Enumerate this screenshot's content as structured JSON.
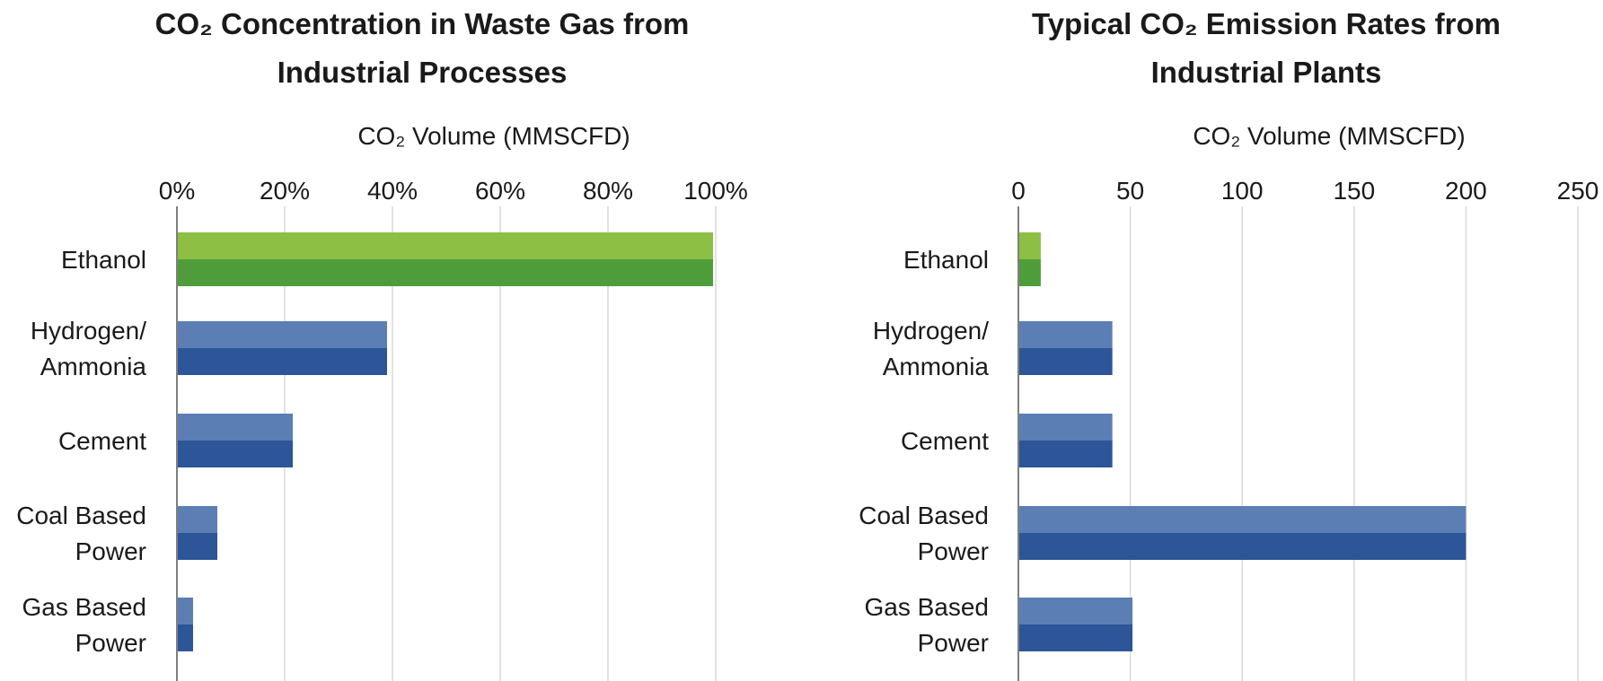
{
  "chart_data": [
    {
      "type": "bar",
      "orientation": "horizontal",
      "title_lines": [
        "CO₂ Concentration in Waste Gas from",
        "Industrial Processes"
      ],
      "xlabel": "CO₂ Volume (MMSCFD)",
      "categories": [
        [
          "Ethanol"
        ],
        [
          "Hydrogen/",
          "Ammonia"
        ],
        [
          "Cement"
        ],
        [
          "Coal Based",
          "Power"
        ],
        [
          "Gas Based",
          "Power"
        ]
      ],
      "values": [
        99.5,
        39,
        21.5,
        7.5,
        3
      ],
      "xlim": [
        0,
        100
      ],
      "ticks": [
        "0%",
        "20%",
        "40%",
        "60%",
        "80%",
        "100%"
      ],
      "tick_values": [
        0,
        20,
        40,
        60,
        80,
        100
      ],
      "grid": "vertical",
      "colors": {
        "highlight_top": "#8cbf44",
        "highlight_bottom": "#4f9d3a",
        "default_top": "#5b7eb5",
        "default_bottom": "#2c5697"
      },
      "highlight_index": 0
    },
    {
      "type": "bar",
      "orientation": "horizontal",
      "title_lines": [
        "Typical CO₂ Emission Rates from",
        "Industrial Plants"
      ],
      "xlabel": "CO₂ Volume (MMSCFD)",
      "categories": [
        [
          "Ethanol"
        ],
        [
          "Hydrogen/",
          "Ammonia"
        ],
        [
          "Cement"
        ],
        [
          "Coal Based",
          "Power"
        ],
        [
          "Gas Based",
          "Power"
        ]
      ],
      "values": [
        10,
        42,
        42,
        200,
        51
      ],
      "xlim": [
        0,
        250
      ],
      "ticks": [
        "0",
        "50",
        "100",
        "150",
        "200",
        "250"
      ],
      "tick_values": [
        0,
        50,
        100,
        150,
        200,
        250
      ],
      "grid": "vertical",
      "colors": {
        "highlight_top": "#8cbf44",
        "highlight_bottom": "#4f9d3a",
        "default_top": "#5b7eb5",
        "default_bottom": "#2c5697"
      },
      "highlight_index": 0
    }
  ]
}
